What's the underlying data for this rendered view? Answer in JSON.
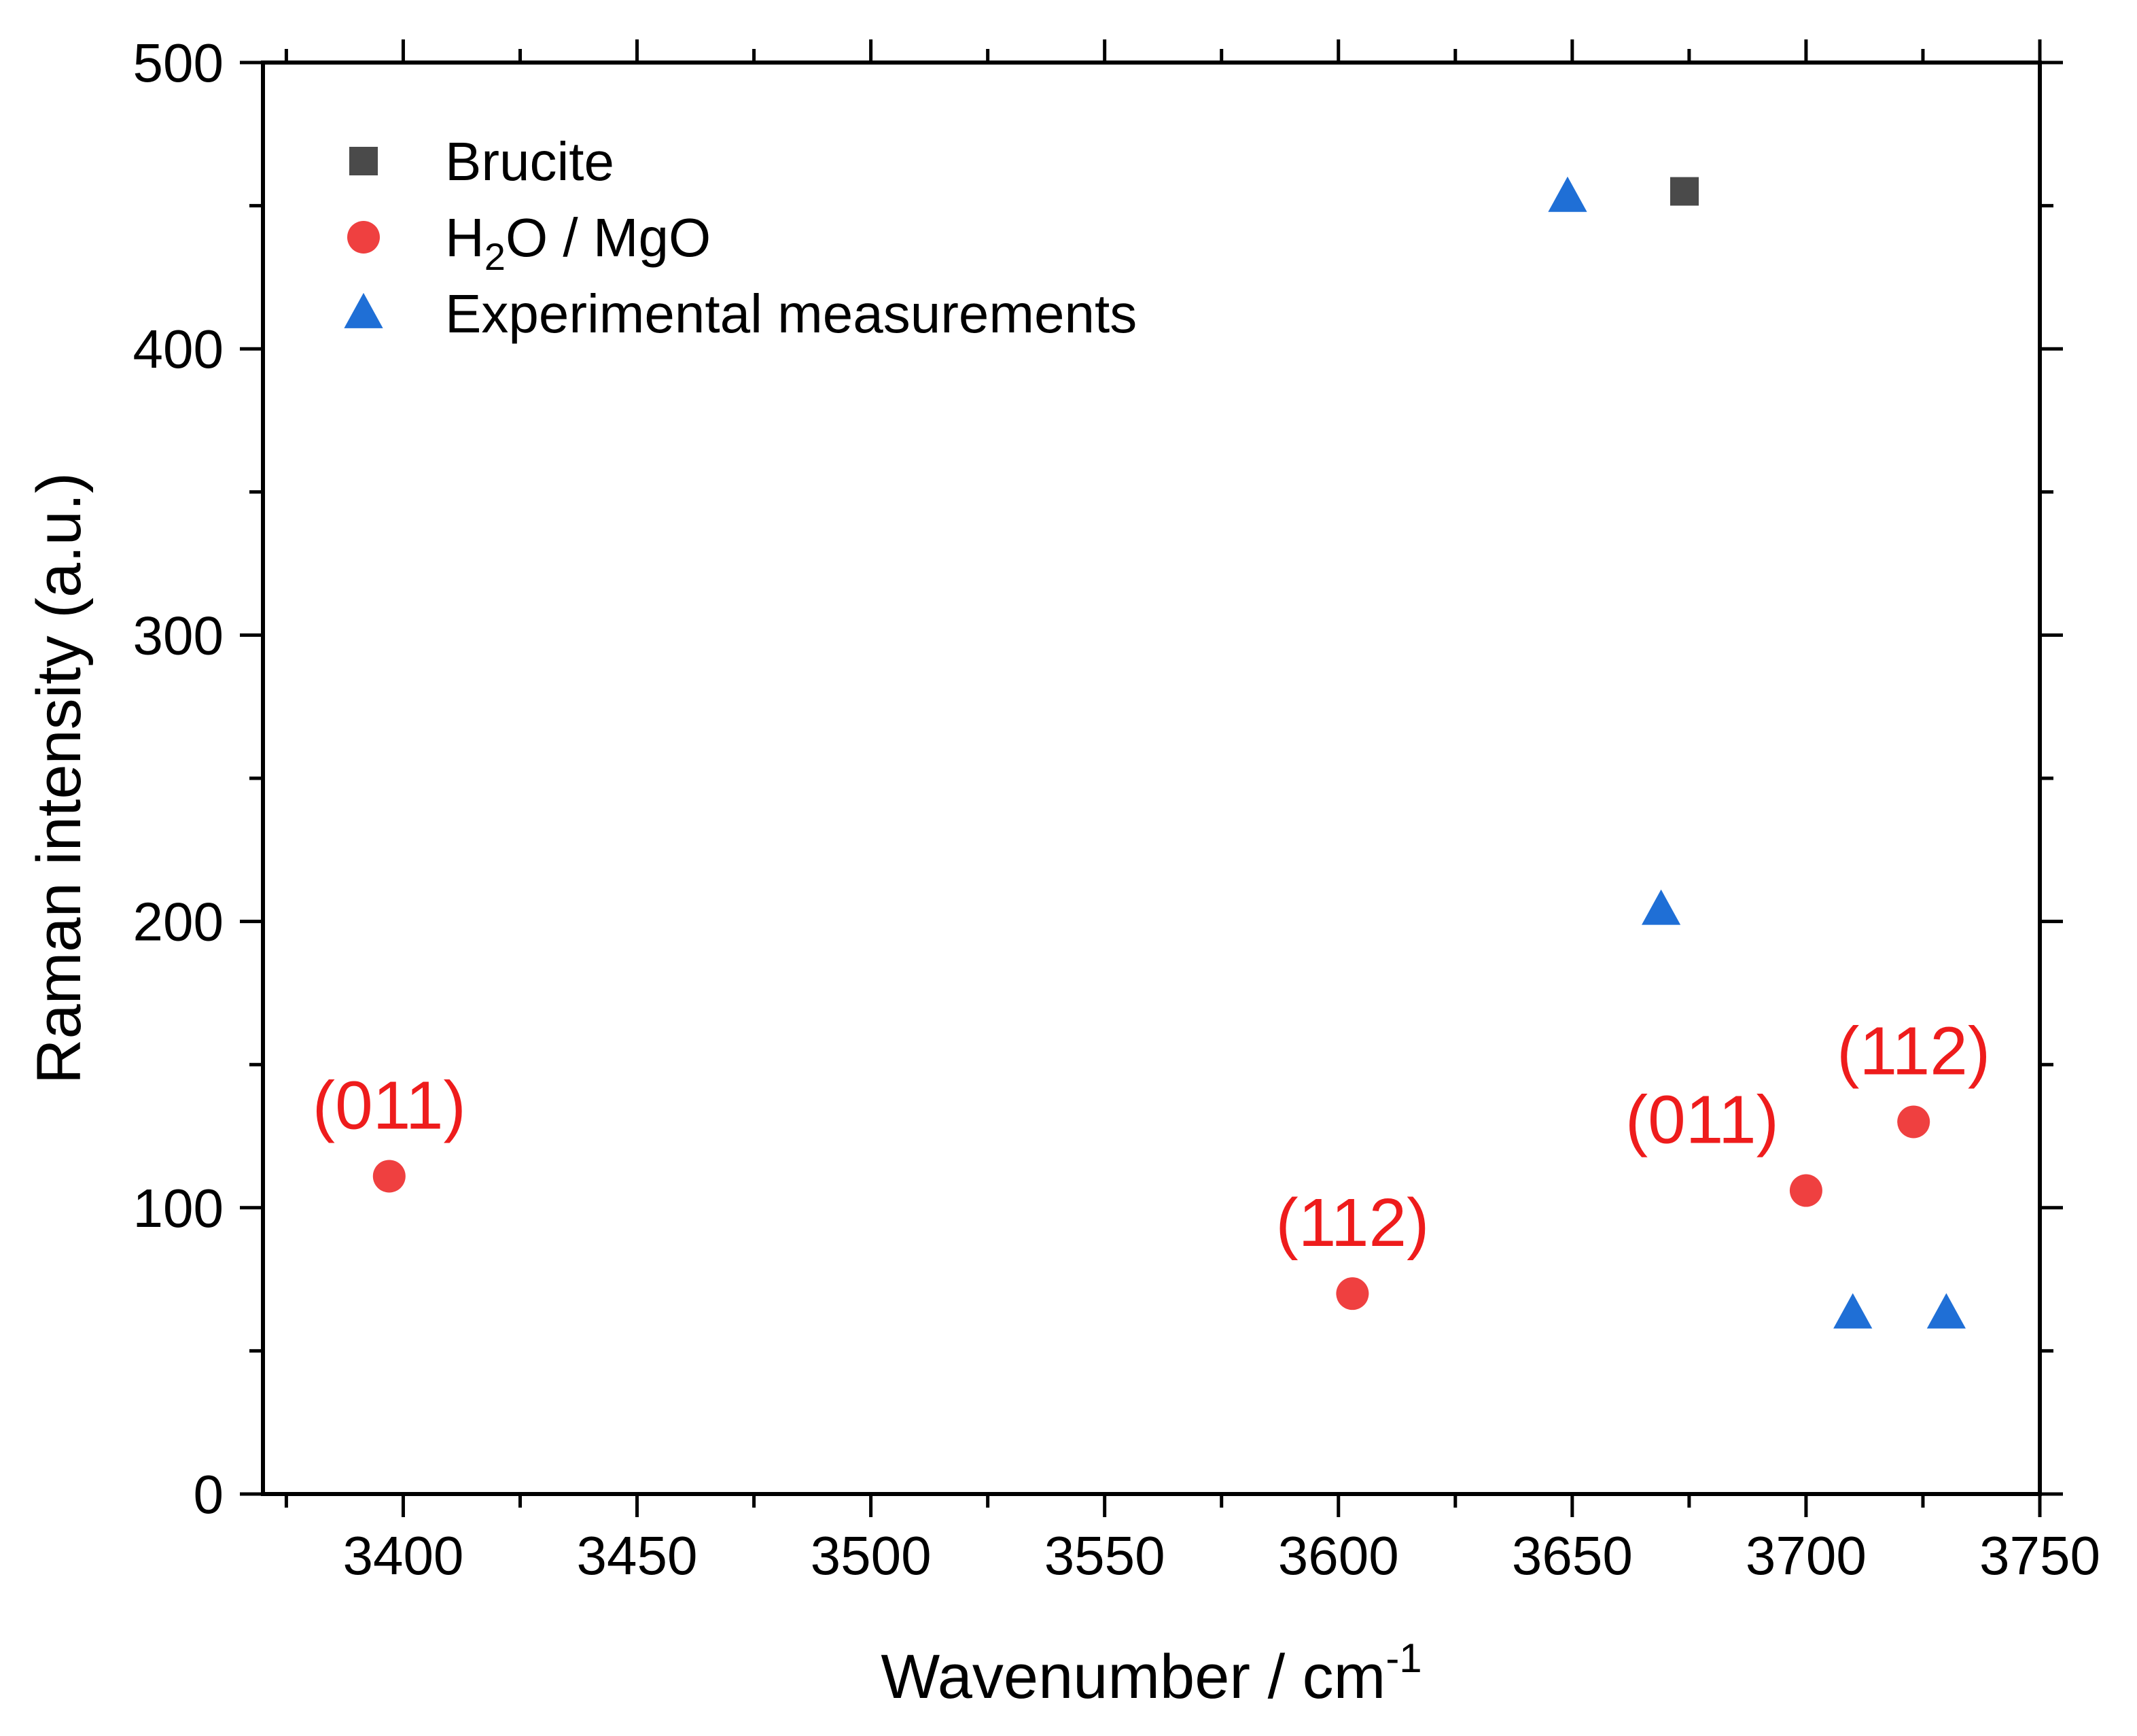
{
  "chart_data": {
    "type": "scatter",
    "title": "",
    "xlabel": "Wavenumber / cm",
    "xlabel_superscript": "-1",
    "ylabel": "Raman intensity (a.u.)",
    "xlim": [
      3370,
      3750
    ],
    "ylim": [
      0,
      500
    ],
    "x_ticks": [
      3400,
      3450,
      3500,
      3550,
      3600,
      3650,
      3700,
      3750
    ],
    "x_tick_labels": [
      "3400",
      "3450",
      "3500",
      "3550",
      "3600",
      "3650",
      "3700",
      "3750"
    ],
    "y_ticks": [
      0,
      100,
      200,
      300,
      400,
      500
    ],
    "y_tick_labels": [
      "0",
      "100",
      "200",
      "300",
      "400",
      "500"
    ],
    "grid": false,
    "legend_position": "top-left",
    "series": [
      {
        "name": "Brucite",
        "legend": {
          "text": "Brucite",
          "subscript": "",
          "after": ""
        },
        "marker": "square",
        "color": "#4a4a4a",
        "points": [
          {
            "x": 3674,
            "y": 455
          }
        ]
      },
      {
        "name": "H2O / MgO",
        "legend": {
          "text": "H",
          "subscript": "2",
          "after": "O / MgO"
        },
        "marker": "circle",
        "color": "#ef4040",
        "points": [
          {
            "x": 3397,
            "y": 111
          },
          {
            "x": 3603,
            "y": 70
          },
          {
            "x": 3700,
            "y": 106
          },
          {
            "x": 3723,
            "y": 130
          }
        ]
      },
      {
        "name": "Experimental measurements",
        "legend": {
          "text": "Experimental measurements",
          "subscript": "",
          "after": ""
        },
        "marker": "triangle",
        "color": "#1f6fd6",
        "points": [
          {
            "x": 3649,
            "y": 453
          },
          {
            "x": 3669,
            "y": 204
          },
          {
            "x": 3710,
            "y": 63
          },
          {
            "x": 3730,
            "y": 63
          }
        ]
      }
    ],
    "annotations": [
      {
        "text": "(011)",
        "x": 3397,
        "y": 111,
        "color": "#ee1c1c",
        "placement": "above"
      },
      {
        "text": "(112)",
        "x": 3603,
        "y": 70,
        "color": "#ee1c1c",
        "placement": "above"
      },
      {
        "text": "(011)",
        "x": 3700,
        "y": 106,
        "color": "#ee1c1c",
        "placement": "upper-left"
      },
      {
        "text": "(112)",
        "x": 3723,
        "y": 130,
        "color": "#ee1c1c",
        "placement": "above"
      }
    ]
  }
}
